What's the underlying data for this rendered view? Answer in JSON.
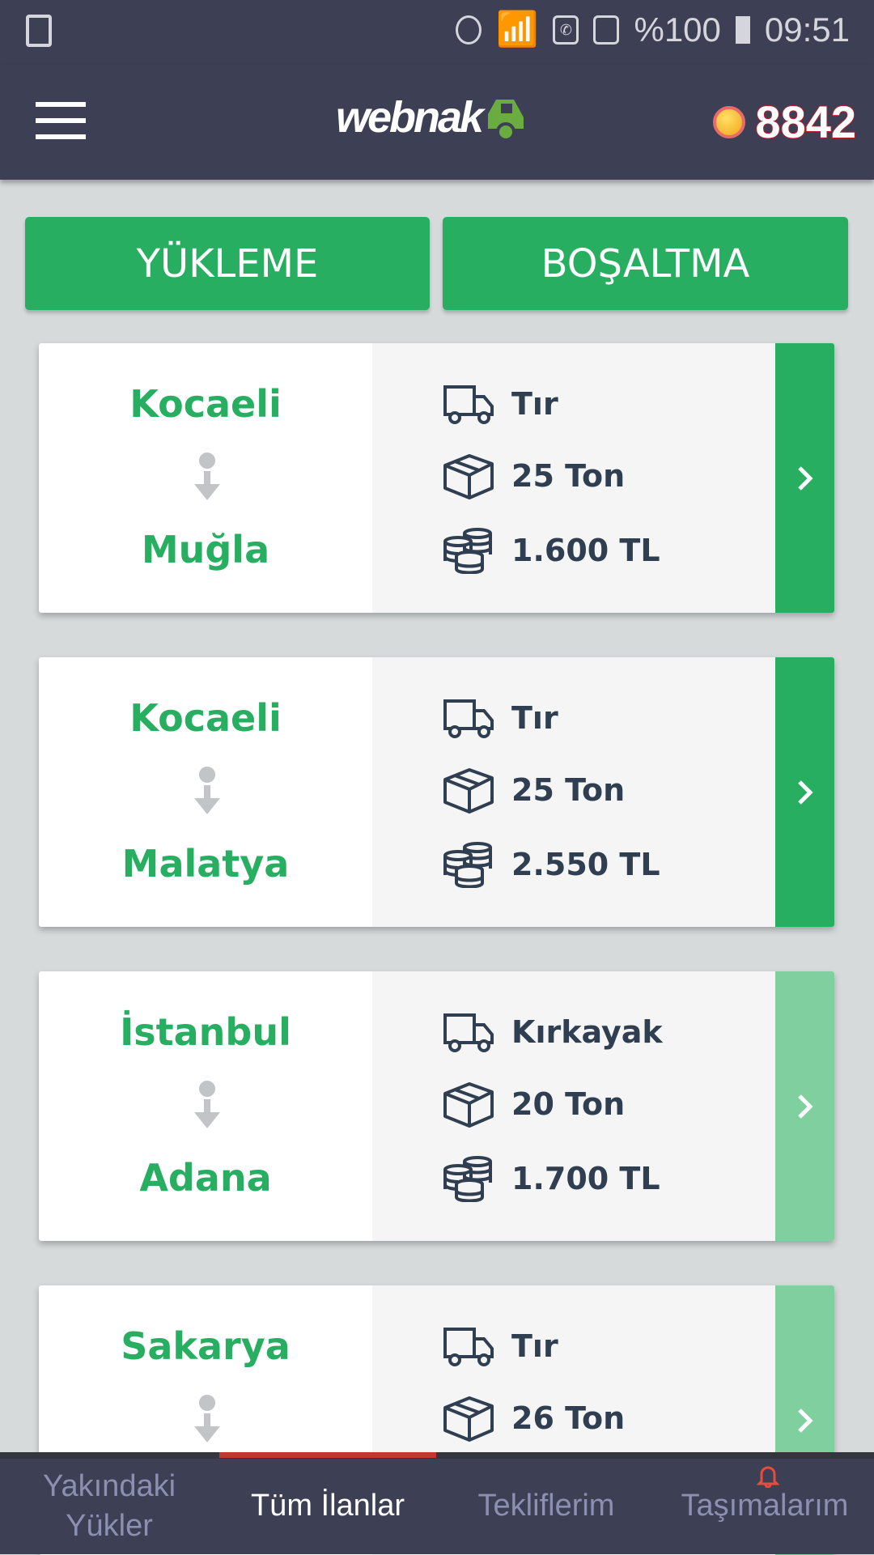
{
  "status_bar": {
    "battery": "%100",
    "time": "09:51"
  },
  "header": {
    "logo": "webnak",
    "score": "8842"
  },
  "filters": {
    "loading": "YÜKLEME",
    "unloading": "BOŞALTMA"
  },
  "colors": {
    "accent": "#27ae60",
    "accent_light": "#7fd09e",
    "header": "#3d3f55",
    "nav_indicator": "#c0392b"
  },
  "listings": [
    {
      "from": "Kocaeli",
      "to": "Muğla",
      "vehicle": "Tır",
      "weight": "25 Ton",
      "price": "1.600 TL",
      "highlight": true
    },
    {
      "from": "Kocaeli",
      "to": "Malatya",
      "vehicle": "Tır",
      "weight": "25 Ton",
      "price": "2.550 TL",
      "highlight": true
    },
    {
      "from": "İstanbul",
      "to": "Adana",
      "vehicle": "Kırkayak",
      "weight": "20 Ton",
      "price": "1.700 TL",
      "highlight": false
    },
    {
      "from": "Sakarya",
      "to": "",
      "vehicle": "Tır",
      "weight": "26 Ton",
      "price": "",
      "highlight": false
    }
  ],
  "bottom_nav": [
    {
      "label": "Yakındaki Yükler",
      "active": false
    },
    {
      "label": "Tüm İlanlar",
      "active": true
    },
    {
      "label": "Tekliflerim",
      "active": false
    },
    {
      "label": "Taşımalarım",
      "active": false,
      "icon": "bell-icon"
    }
  ]
}
